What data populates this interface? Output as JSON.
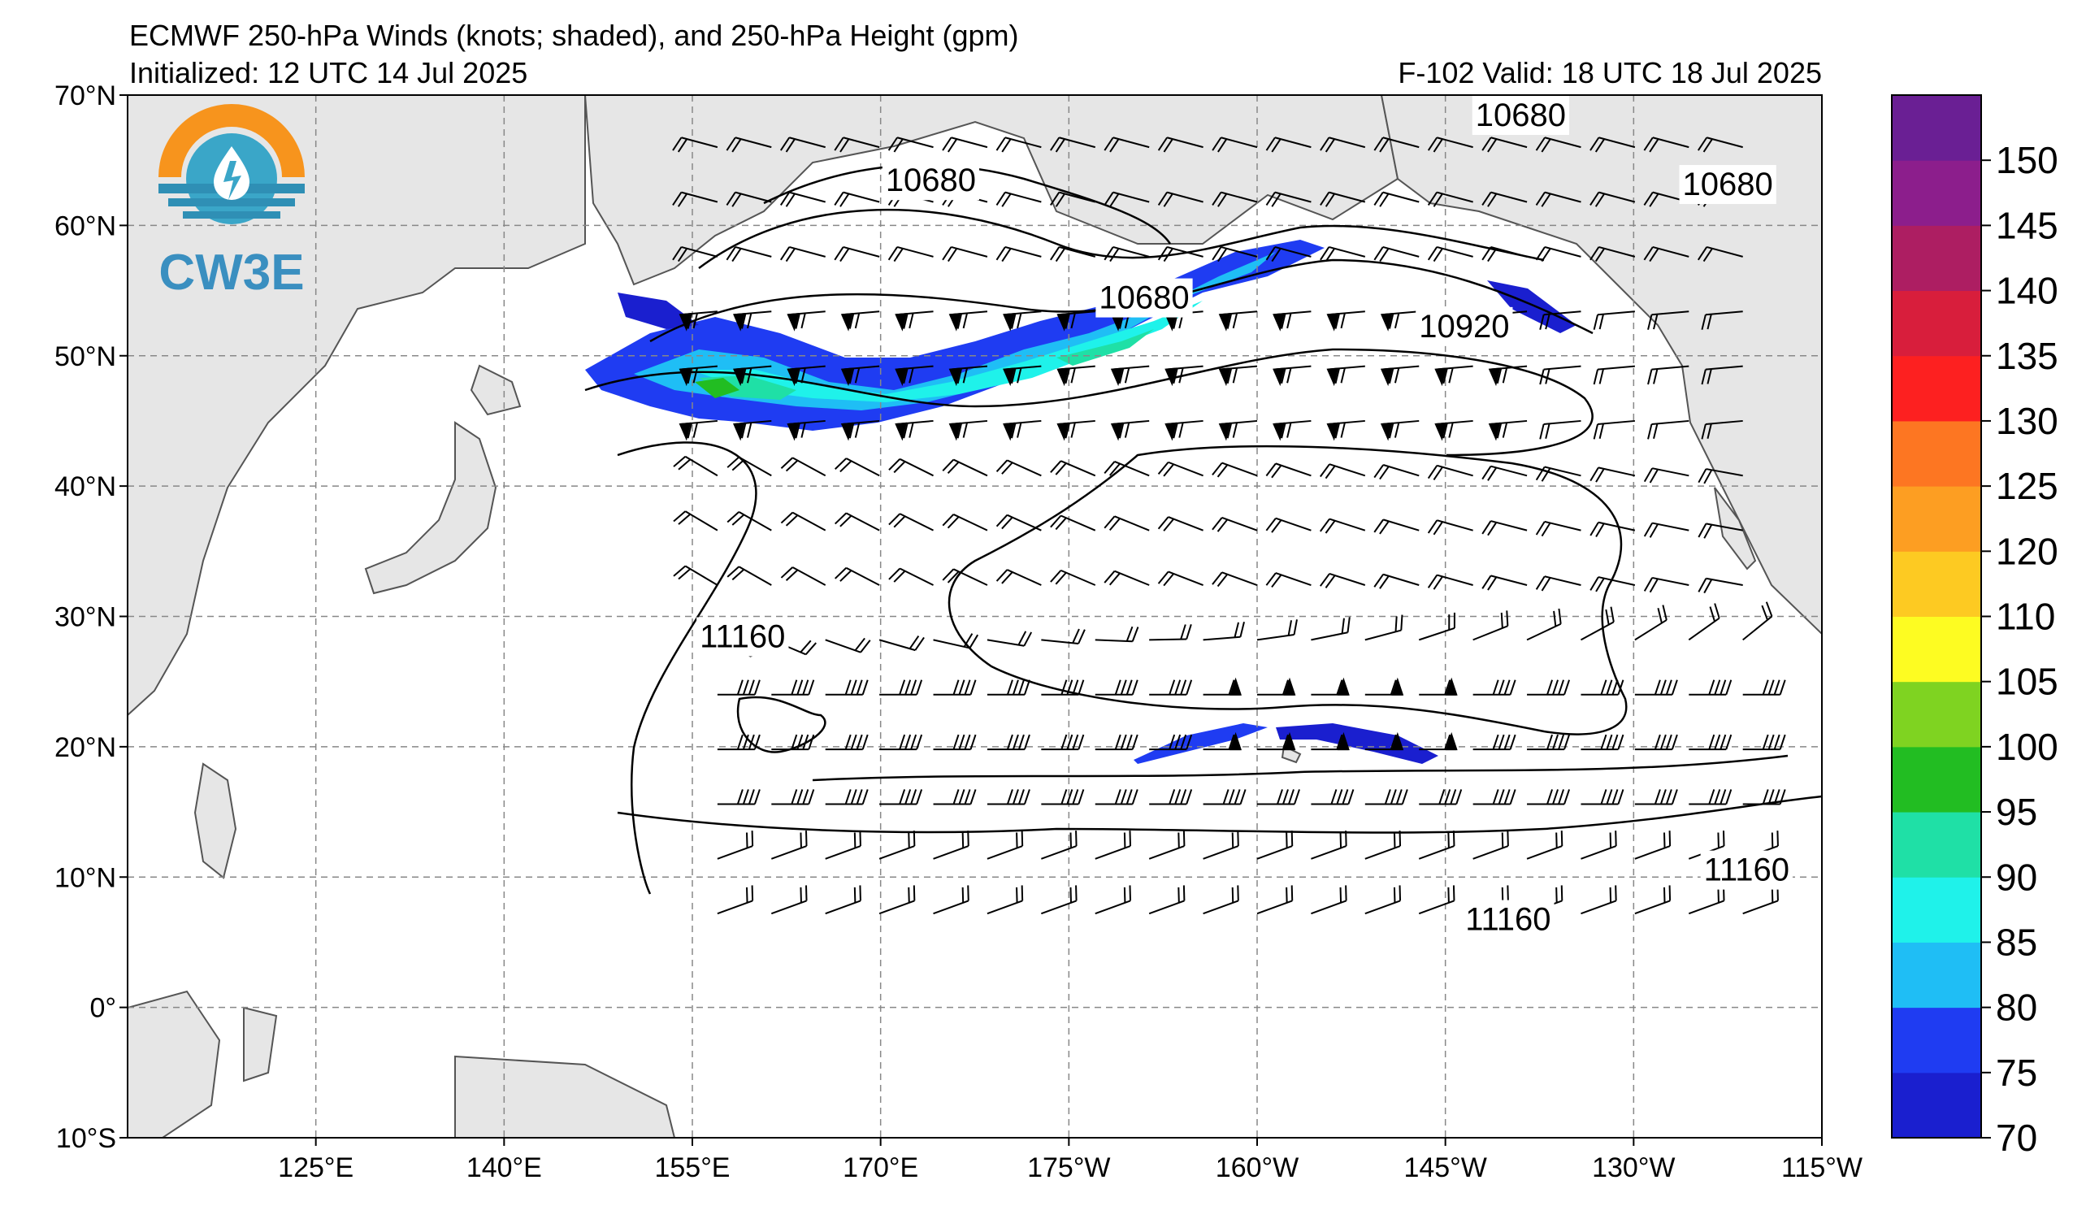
{
  "title": {
    "line1": "ECMWF 250-hPa Winds (knots; shaded), and 250-hPa Height (gpm)",
    "line2": "Initialized: 12 UTC 14 Jul 2025",
    "valid": "F-102  Valid: 18 UTC 18 Jul 2025"
  },
  "logo": {
    "text": "CW3E"
  },
  "map": {
    "lon_range": [
      110,
      245
    ],
    "lat_range": [
      -10,
      70
    ],
    "lat_labels": [
      "70°N",
      "60°N",
      "50°N",
      "40°N",
      "30°N",
      "20°N",
      "10°N",
      "0°",
      "10°S"
    ],
    "lat_values": [
      70,
      60,
      50,
      40,
      30,
      20,
      10,
      0,
      -10
    ],
    "lon_labels": [
      "125°E",
      "140°E",
      "155°E",
      "170°E",
      "175°W",
      "160°W",
      "145°W",
      "130°W",
      "115°W"
    ],
    "lon_values": [
      125,
      140,
      155,
      170,
      185,
      200,
      215,
      230,
      245
    ],
    "gridlines": true,
    "land_color": "#e6e6e6",
    "contour_labels": [
      {
        "text": "10680",
        "lon": 174,
        "lat": 63.5
      },
      {
        "text": "10680",
        "lon": 221,
        "lat": 68.5
      },
      {
        "text": "10680",
        "lon": 237.5,
        "lat": 63.2
      },
      {
        "text": "10680",
        "lon": 191,
        "lat": 54.5
      },
      {
        "text": "10920",
        "lon": 216.5,
        "lat": 52.3
      },
      {
        "text": "11160",
        "lon": 159,
        "lat": 28.5
      },
      {
        "text": "11160",
        "lon": 220,
        "lat": 6.8
      },
      {
        "text": "11160",
        "lon": 239,
        "lat": 10.6
      }
    ]
  },
  "colorbar": {
    "levels": [
      70,
      75,
      80,
      85,
      90,
      95,
      100,
      105,
      110,
      120,
      125,
      130,
      135,
      140,
      145,
      150,
      155
    ],
    "tick_labels": [
      "70",
      "75",
      "80",
      "85",
      "90",
      "95",
      "100",
      "105",
      "110",
      "120",
      "125",
      "130",
      "135",
      "140",
      "145",
      "150"
    ],
    "colors": [
      "#1a1fcf",
      "#1f3cf2",
      "#1fbef5",
      "#1ff2ea",
      "#1fe0a6",
      "#22bd22",
      "#7fd321",
      "#fdfc22",
      "#fdca22",
      "#fd9e22",
      "#fd7622",
      "#fd2020",
      "#d81e3c",
      "#ad1e62",
      "#8c1e8c",
      "#6a1f94"
    ]
  }
}
